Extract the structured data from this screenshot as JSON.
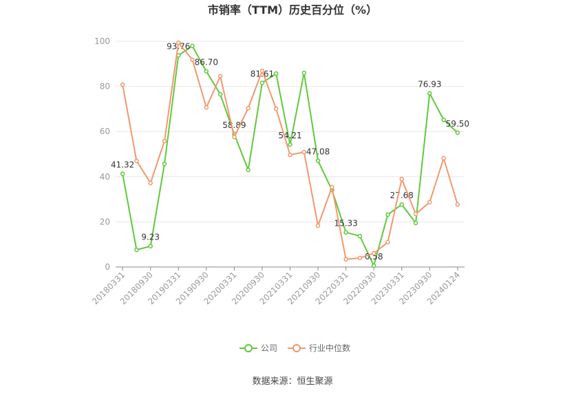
{
  "chart_data": {
    "type": "line",
    "title": "市销率（TTM）历史百分位（%）",
    "categories": [
      "20180331",
      null,
      "20180930",
      null,
      "20190331",
      null,
      "20190930",
      null,
      "20200331",
      null,
      "20200930",
      null,
      "20210331",
      null,
      "20210930",
      null,
      "20220331",
      null,
      "20220930",
      null,
      "20230331",
      null,
      "20230930",
      null,
      "20240124"
    ],
    "series": [
      {
        "name": "公司",
        "color": "#5ec93b",
        "values": [
          41.32,
          7.6,
          9.23,
          45.7,
          93.76,
          97.9,
          86.7,
          76.5,
          58.89,
          43.0,
          81.61,
          85.7,
          54.21,
          86.0,
          47.08,
          34.1,
          15.33,
          13.7,
          0.58,
          23.2,
          27.68,
          19.5,
          76.93,
          65.2,
          59.5
        ],
        "value_labels": [
          "41.32",
          null,
          "9.23",
          null,
          "93.76",
          null,
          "86.70",
          null,
          "58.89",
          null,
          "81.61",
          null,
          "54.21",
          null,
          "47.08",
          null,
          "15.33",
          null,
          "0.58",
          null,
          "27.68",
          null,
          "76.93",
          null,
          "59.50"
        ]
      },
      {
        "name": "行业中位数",
        "color": "#f4966e",
        "values": [
          80.8,
          47.0,
          37.2,
          55.8,
          99.4,
          91.8,
          70.7,
          84.5,
          57.6,
          70.4,
          86.9,
          70.1,
          49.7,
          50.9,
          18.3,
          35.4,
          3.4,
          4.0,
          6.1,
          11.0,
          39.0,
          23.5,
          28.7,
          48.2,
          27.7
        ]
      }
    ],
    "ylim": [
      0,
      100
    ],
    "yticks": [
      0,
      20,
      40,
      60,
      80,
      100
    ],
    "grid": true,
    "legend": "bottom",
    "source": "数据来源：恒生聚源"
  }
}
